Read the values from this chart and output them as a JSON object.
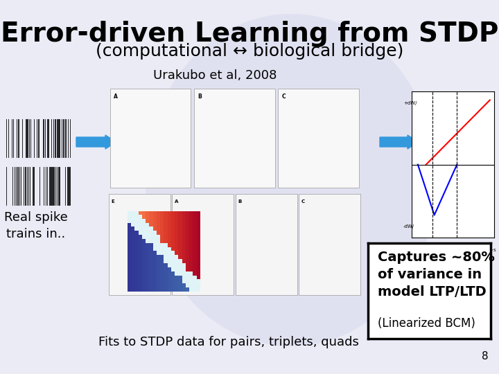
{
  "bg_color": "#eaebf5",
  "title": "Error-driven Learning from STDP",
  "subtitle": "(computational ↔ biological bridge)",
  "urakubo_label": "Urakubo et al, 2008",
  "real_spike_label": "Real spike\ntrains in..",
  "fits_label": "Fits to STDP data for pairs, triplets, quads",
  "captures_text": "Captures ~80%\nof variance in\nmodel LTP/LTD",
  "linearized_text": "(Linearized BCM)",
  "page_number": "8",
  "title_fontsize": 28,
  "subtitle_fontsize": 18,
  "urakubo_fontsize": 13,
  "label_fontsize": 13,
  "captures_fontsize": 14,
  "linearized_fontsize": 12,
  "fits_fontsize": 13,
  "page_fontsize": 11,
  "title_color": "#000000",
  "label_color": "#000000",
  "captures_box_color": "#ffffff",
  "captures_box_edge": "#000000",
  "arrow_color": "#3399dd",
  "bg_droplet_color": "#d5d5eb"
}
